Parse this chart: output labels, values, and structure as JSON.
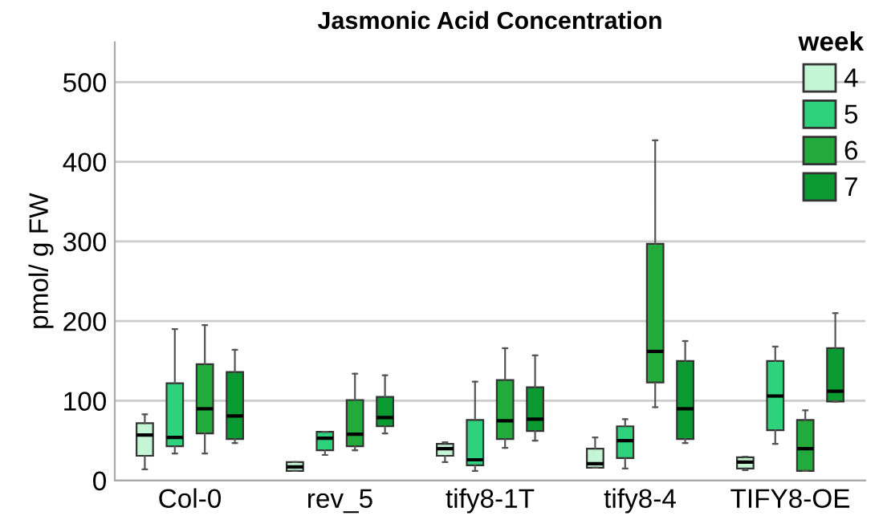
{
  "chart_data": {
    "type": "box",
    "title": "Jasmonic Acid Concentration",
    "ylabel": "pmol/ g FW",
    "legend_title": "week",
    "categories": [
      "Col-0",
      "rev_5",
      "tify8-1T",
      "tify8-4",
      "TIFY8-OE"
    ],
    "ylim": [
      0,
      550
    ],
    "yticks": [
      0,
      100,
      200,
      300,
      400,
      500
    ],
    "grid": "y",
    "legend": "top right",
    "series": [
      {
        "name": "4",
        "color": "#c4f5d4",
        "boxes": [
          {
            "low": 14,
            "q1": 31,
            "median": 57,
            "q3": 72,
            "high": 83
          },
          {
            "low": 12,
            "q1": 12,
            "median": 17,
            "q3": 23,
            "high": 23
          },
          {
            "low": 23,
            "q1": 31,
            "median": 40,
            "q3": 46,
            "high": 48
          },
          {
            "low": 16,
            "q1": 16,
            "median": 21,
            "q3": 40,
            "high": 54
          },
          {
            "low": 13,
            "q1": 15,
            "median": 23,
            "q3": 29,
            "high": 30
          }
        ]
      },
      {
        "name": "5",
        "color": "#2ed27c",
        "boxes": [
          {
            "low": 34,
            "q1": 43,
            "median": 54,
            "q3": 122,
            "high": 190
          },
          {
            "low": 32,
            "q1": 38,
            "median": 53,
            "q3": 61,
            "high": 61
          },
          {
            "low": 12,
            "q1": 19,
            "median": 26,
            "q3": 76,
            "high": 124
          },
          {
            "low": 15,
            "q1": 28,
            "median": 50,
            "q3": 68,
            "high": 77
          },
          {
            "low": 46,
            "q1": 63,
            "median": 106,
            "q3": 150,
            "high": 168
          }
        ]
      },
      {
        "name": "6",
        "color": "#22aa3a",
        "boxes": [
          {
            "low": 34,
            "q1": 59,
            "median": 90,
            "q3": 146,
            "high": 195
          },
          {
            "low": 38,
            "q1": 43,
            "median": 58,
            "q3": 101,
            "high": 134
          },
          {
            "low": 41,
            "q1": 52,
            "median": 75,
            "q3": 126,
            "high": 166
          },
          {
            "low": 92,
            "q1": 123,
            "median": 162,
            "q3": 297,
            "high": 427
          },
          {
            "low": 12,
            "q1": 12,
            "median": 40,
            "q3": 76,
            "high": 88
          }
        ]
      },
      {
        "name": "7",
        "color": "#0b9a32",
        "boxes": [
          {
            "low": 47,
            "q1": 52,
            "median": 81,
            "q3": 136,
            "high": 164
          },
          {
            "low": 59,
            "q1": 68,
            "median": 79,
            "q3": 105,
            "high": 132
          },
          {
            "low": 50,
            "q1": 62,
            "median": 77,
            "q3": 117,
            "high": 157
          },
          {
            "low": 47,
            "q1": 52,
            "median": 90,
            "q3": 150,
            "high": 175
          },
          {
            "low": 99,
            "q1": 99,
            "median": 112,
            "q3": 166,
            "high": 210
          }
        ]
      }
    ]
  }
}
